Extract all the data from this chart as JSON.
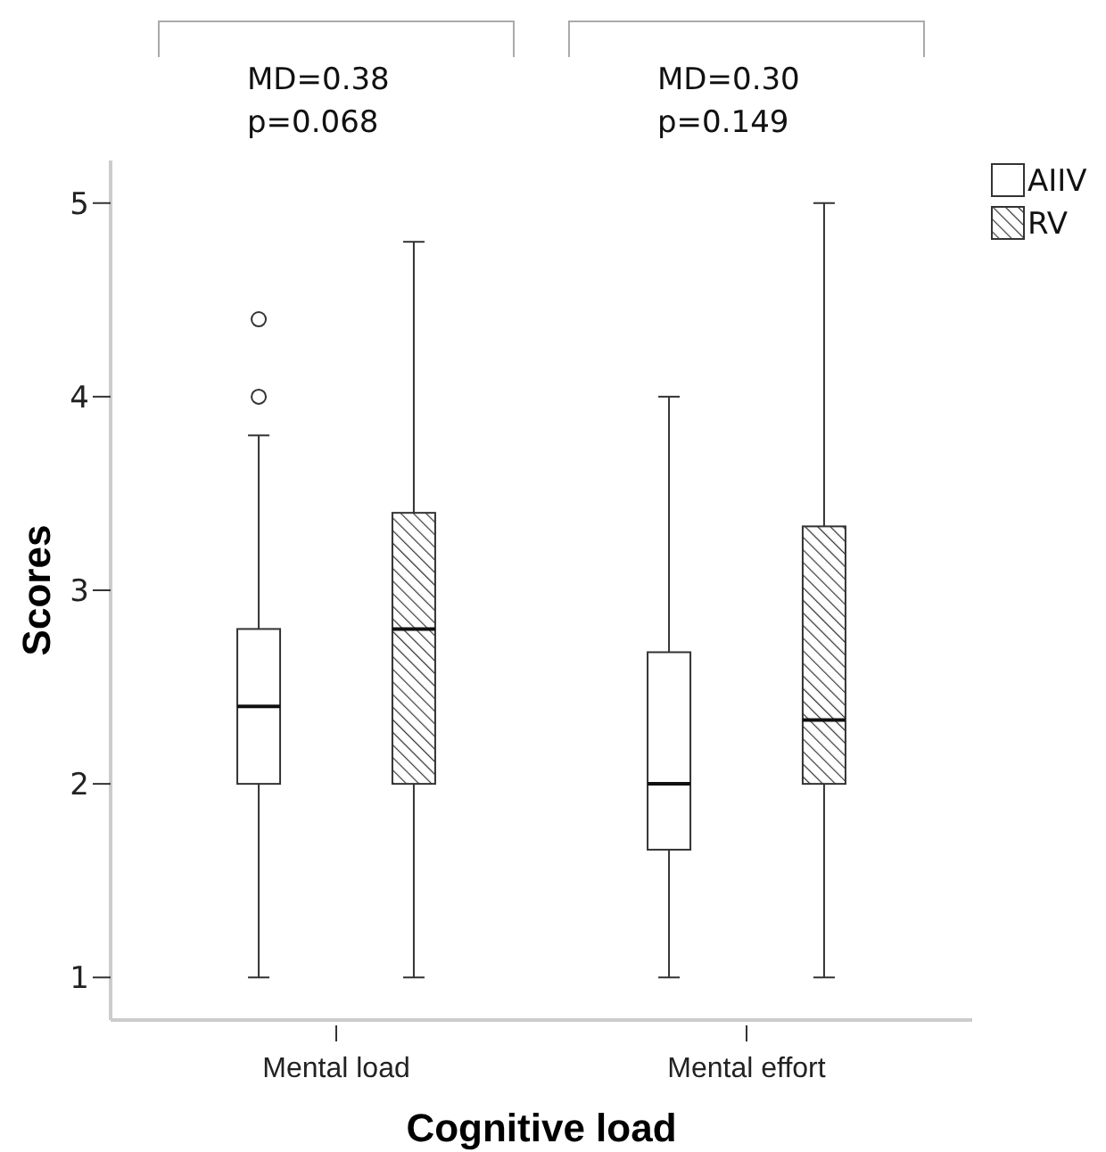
{
  "chart_data": {
    "type": "box",
    "xlabel": "Cognitive load",
    "ylabel": "Scores",
    "categories": [
      "Mental load",
      "Mental effort"
    ],
    "ylim": [
      0.78,
      5.22
    ],
    "yticks": [
      1,
      2,
      3,
      4,
      5
    ],
    "legend": "top right",
    "annotations": [
      "MD=0.38\np=0.068",
      "MD=0.30\np=0.149"
    ],
    "series": [
      {
        "name": "AIIV",
        "color": "#ffffff",
        "boxes": [
          {
            "low": 1,
            "q1": 2,
            "median": 2.4,
            "q3": 2.8,
            "high": 3.8,
            "outliers": [
              4,
              4.4
            ]
          },
          {
            "low": 1,
            "q1": 1.66,
            "median": 2,
            "q3": 2.68,
            "high": 4
          }
        ]
      },
      {
        "name": "RV",
        "color": "#333333",
        "boxes": [
          {
            "low": 1,
            "q1": 2,
            "median": 2.8,
            "q3": 3.4,
            "high": 4.8
          },
          {
            "low": 1,
            "q1": 2,
            "median": 2.33,
            "q3": 3.33,
            "high": 5
          }
        ]
      }
    ]
  }
}
